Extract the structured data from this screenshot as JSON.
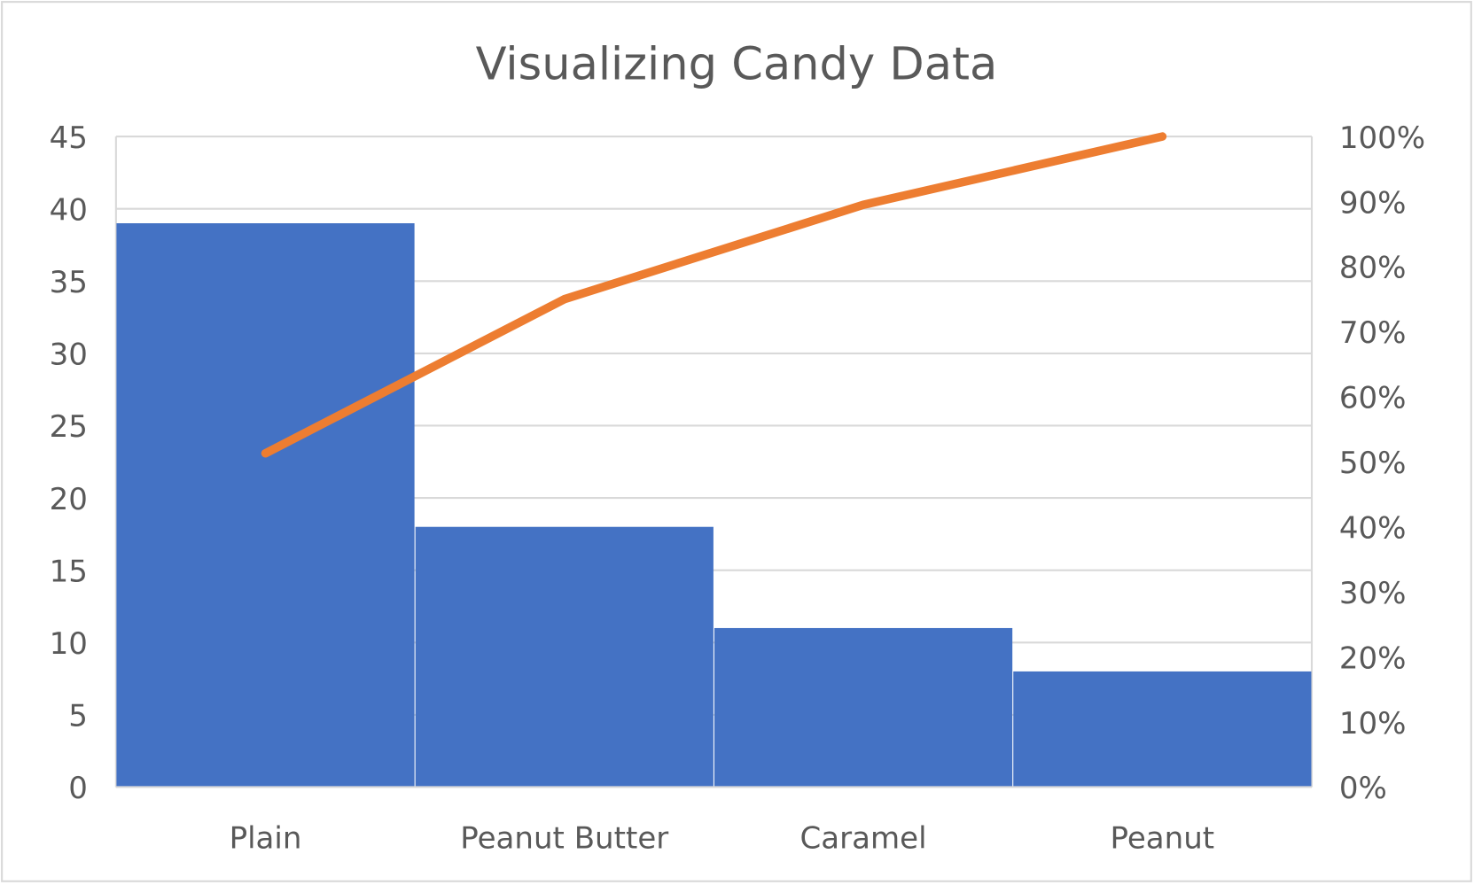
{
  "chart_data": {
    "type": "bar",
    "subtype": "pareto",
    "title": "Visualizing Candy Data",
    "categories": [
      "Plain",
      "Peanut Butter",
      "Caramel",
      "Peanut"
    ],
    "series": [
      {
        "kind": "bar",
        "axis": "left",
        "values": [
          39,
          18,
          11,
          8
        ],
        "color": "#4472C4"
      },
      {
        "kind": "line",
        "axis": "right",
        "values": [
          51.3,
          75.0,
          89.5,
          100.0
        ],
        "color": "#ED7D31"
      }
    ],
    "ylim_left": [
      0,
      45
    ],
    "ylim_right": [
      0,
      100
    ],
    "yticks_left": [
      "0",
      "5",
      "10",
      "15",
      "20",
      "25",
      "30",
      "35",
      "40",
      "45"
    ],
    "yticks_right": [
      "0%",
      "10%",
      "20%",
      "30%",
      "40%",
      "50%",
      "60%",
      "70%",
      "80%",
      "90%",
      "100%"
    ],
    "grid": true,
    "legend": "none",
    "xlabel": "",
    "ylabel": ""
  }
}
